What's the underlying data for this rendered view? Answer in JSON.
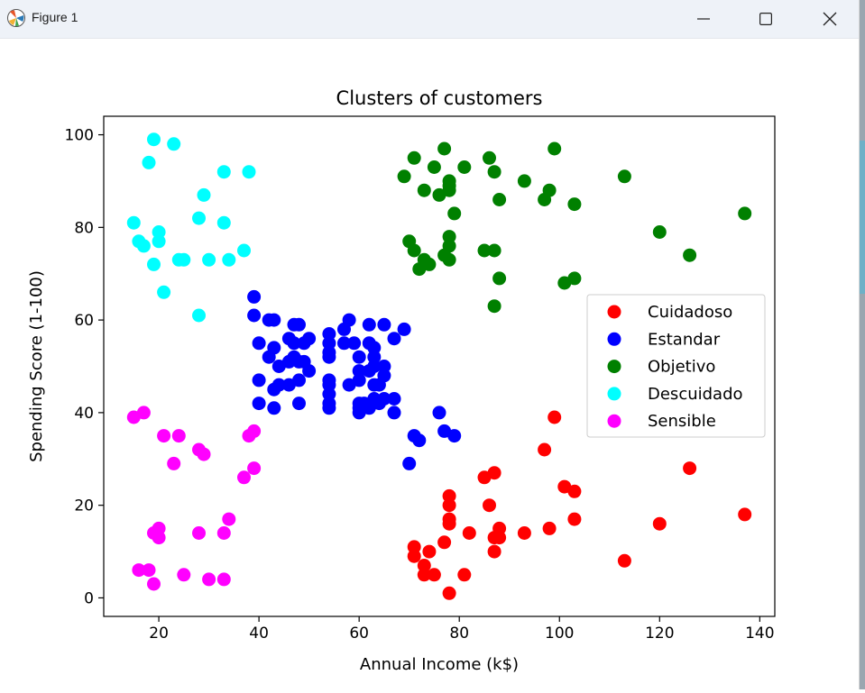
{
  "window": {
    "title": "Figure 1"
  },
  "chart_data": {
    "type": "scatter",
    "title": "Clusters of customers",
    "xlabel": "Annual Income (k$)",
    "ylabel": "Spending Score (1-100)",
    "xlim": [
      9,
      143
    ],
    "ylim": [
      -4,
      104
    ],
    "xticks": [
      20,
      40,
      60,
      80,
      100,
      120,
      140
    ],
    "yticks": [
      0,
      20,
      40,
      60,
      80,
      100
    ],
    "grid": false,
    "legend_position": "center-right",
    "series": [
      {
        "name": "Cuidadoso",
        "color": "#ff0000",
        "points": [
          [
            99,
            39
          ],
          [
            97,
            32
          ],
          [
            101,
            24
          ],
          [
            103,
            23
          ],
          [
            103,
            17
          ],
          [
            98,
            15
          ],
          [
            93,
            14
          ],
          [
            88,
            15
          ],
          [
            88,
            13
          ],
          [
            87,
            13
          ],
          [
            87,
            10
          ],
          [
            87,
            27
          ],
          [
            86,
            20
          ],
          [
            85,
            26
          ],
          [
            82,
            14
          ],
          [
            81,
            5
          ],
          [
            78,
            22
          ],
          [
            78,
            20
          ],
          [
            78,
            17
          ],
          [
            78,
            16
          ],
          [
            78,
            1
          ],
          [
            77,
            12
          ],
          [
            75,
            5
          ],
          [
            74,
            10
          ],
          [
            73,
            7
          ],
          [
            73,
            5
          ],
          [
            71,
            11
          ],
          [
            71,
            9
          ],
          [
            113,
            8
          ],
          [
            120,
            16
          ],
          [
            126,
            28
          ],
          [
            137,
            18
          ]
        ]
      },
      {
        "name": "Estandar",
        "color": "#0000ff",
        "points": [
          [
            39,
            65
          ],
          [
            39,
            61
          ],
          [
            40,
            55
          ],
          [
            40,
            47
          ],
          [
            40,
            42
          ],
          [
            42,
            60
          ],
          [
            42,
            52
          ],
          [
            43,
            60
          ],
          [
            43,
            54
          ],
          [
            43,
            45
          ],
          [
            43,
            41
          ],
          [
            44,
            50
          ],
          [
            44,
            46
          ],
          [
            46,
            51
          ],
          [
            46,
            46
          ],
          [
            46,
            56
          ],
          [
            47,
            55
          ],
          [
            47,
            52
          ],
          [
            47,
            59
          ],
          [
            48,
            59
          ],
          [
            48,
            51
          ],
          [
            48,
            47
          ],
          [
            48,
            42
          ],
          [
            49,
            55
          ],
          [
            49,
            51
          ],
          [
            50,
            56
          ],
          [
            50,
            49
          ],
          [
            54,
            57
          ],
          [
            54,
            55
          ],
          [
            54,
            53
          ],
          [
            54,
            52
          ],
          [
            54,
            47
          ],
          [
            54,
            46
          ],
          [
            54,
            44
          ],
          [
            54,
            42
          ],
          [
            54,
            41
          ],
          [
            57,
            58
          ],
          [
            57,
            55
          ],
          [
            58,
            60
          ],
          [
            58,
            46
          ],
          [
            59,
            55
          ],
          [
            60,
            52
          ],
          [
            60,
            49
          ],
          [
            60,
            47
          ],
          [
            60,
            41
          ],
          [
            60,
            40
          ],
          [
            60,
            42
          ],
          [
            61,
            42
          ],
          [
            62,
            59
          ],
          [
            62,
            55
          ],
          [
            62,
            49
          ],
          [
            62,
            41
          ],
          [
            63,
            50
          ],
          [
            63,
            52
          ],
          [
            63,
            54
          ],
          [
            63,
            46
          ],
          [
            63,
            43
          ],
          [
            64,
            42
          ],
          [
            64,
            46
          ],
          [
            65,
            48
          ],
          [
            65,
            50
          ],
          [
            65,
            43
          ],
          [
            65,
            59
          ],
          [
            67,
            56
          ],
          [
            67,
            40
          ],
          [
            67,
            43
          ],
          [
            69,
            58
          ],
          [
            70,
            29
          ],
          [
            71,
            35
          ],
          [
            72,
            34
          ],
          [
            76,
            40
          ],
          [
            77,
            36
          ],
          [
            79,
            35
          ]
        ]
      },
      {
        "name": "Objetivo",
        "color": "#008000",
        "points": [
          [
            69,
            91
          ],
          [
            70,
            77
          ],
          [
            71,
            95
          ],
          [
            71,
            75
          ],
          [
            72,
            71
          ],
          [
            73,
            88
          ],
          [
            73,
            73
          ],
          [
            74,
            72
          ],
          [
            75,
            93
          ],
          [
            76,
            87
          ],
          [
            77,
            97
          ],
          [
            77,
            74
          ],
          [
            78,
            90
          ],
          [
            78,
            88
          ],
          [
            78,
            89
          ],
          [
            78,
            76
          ],
          [
            78,
            78
          ],
          [
            78,
            73
          ],
          [
            79,
            83
          ],
          [
            81,
            93
          ],
          [
            85,
            75
          ],
          [
            86,
            95
          ],
          [
            87,
            92
          ],
          [
            87,
            75
          ],
          [
            87,
            63
          ],
          [
            88,
            86
          ],
          [
            88,
            69
          ],
          [
            93,
            90
          ],
          [
            97,
            86
          ],
          [
            98,
            88
          ],
          [
            99,
            97
          ],
          [
            101,
            68
          ],
          [
            103,
            85
          ],
          [
            103,
            69
          ],
          [
            113,
            91
          ],
          [
            120,
            79
          ],
          [
            126,
            74
          ],
          [
            137,
            83
          ]
        ]
      },
      {
        "name": "Descuidado",
        "color": "#00ffff",
        "points": [
          [
            15,
            81
          ],
          [
            16,
            77
          ],
          [
            17,
            76
          ],
          [
            18,
            94
          ],
          [
            19,
            72
          ],
          [
            19,
            99
          ],
          [
            20,
            77
          ],
          [
            20,
            79
          ],
          [
            21,
            66
          ],
          [
            23,
            98
          ],
          [
            24,
            73
          ],
          [
            25,
            73
          ],
          [
            28,
            82
          ],
          [
            28,
            61
          ],
          [
            29,
            87
          ],
          [
            30,
            73
          ],
          [
            33,
            92
          ],
          [
            33,
            81
          ],
          [
            34,
            73
          ],
          [
            37,
            75
          ],
          [
            38,
            92
          ]
        ]
      },
      {
        "name": "Sensible",
        "color": "#ff00ff",
        "points": [
          [
            15,
            39
          ],
          [
            16,
            6
          ],
          [
            17,
            40
          ],
          [
            18,
            6
          ],
          [
            19,
            3
          ],
          [
            19,
            14
          ],
          [
            20,
            15
          ],
          [
            20,
            13
          ],
          [
            21,
            35
          ],
          [
            23,
            29
          ],
          [
            24,
            35
          ],
          [
            25,
            5
          ],
          [
            28,
            14
          ],
          [
            28,
            32
          ],
          [
            29,
            31
          ],
          [
            30,
            4
          ],
          [
            33,
            4
          ],
          [
            33,
            14
          ],
          [
            34,
            17
          ],
          [
            37,
            26
          ],
          [
            38,
            35
          ],
          [
            39,
            36
          ],
          [
            39,
            28
          ]
        ]
      }
    ]
  }
}
